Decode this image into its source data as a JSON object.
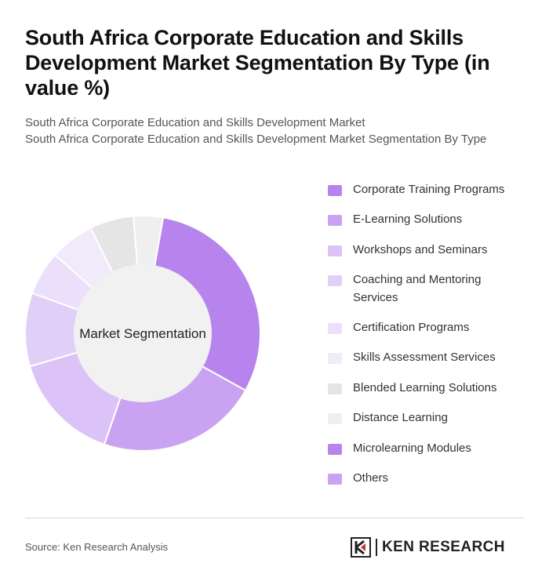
{
  "header": {
    "title": "South Africa Corporate Education and Skills Development Market Segmentation By Type (in value %)",
    "subtitle_line1": "South Africa Corporate Education and Skills Development Market",
    "subtitle_line2": "South Africa Corporate Education and Skills Development Market Segmentation By Type"
  },
  "chart_data": {
    "type": "pie",
    "center_label": "Market Segmentation",
    "legend_position": "right",
    "categories": [
      "Corporate Training Programs",
      "E-Learning Solutions",
      "Workshops and Seminars",
      "Coaching and Mentoring Services",
      "Certification Programs",
      "Skills Assessment Services",
      "Blended Learning Solutions",
      "Distance Learning",
      "Microlearning Modules",
      "Others"
    ],
    "values": [
      30,
      22,
      15,
      10,
      6,
      6,
      6,
      4,
      0,
      0
    ],
    "colors": [
      "#b684ec",
      "#c9a3f1",
      "#dbc3f7",
      "#e2cff8",
      "#ebdffb",
      "#f1eafb",
      "#e5e5e5",
      "#efefef",
      "#b684ec",
      "#c9a3f1"
    ]
  },
  "footer": {
    "source": "Source: Ken Research Analysis",
    "brand": "KEN RESEARCH",
    "logo_icon": "ken-research-logo-icon"
  }
}
